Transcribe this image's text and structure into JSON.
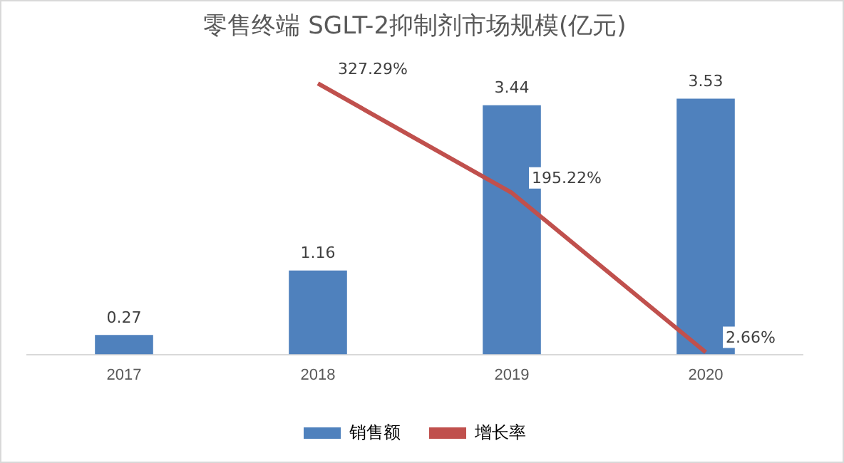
{
  "chart_data": {
    "type": "bar",
    "title": "零售终端 SGLT-2抑制剂市场规模(亿元)",
    "categories": [
      "2017",
      "2018",
      "2019",
      "2020"
    ],
    "series": [
      {
        "name": "销售额",
        "color": "#4f81bd",
        "values": [
          0.27,
          1.16,
          3.44,
          3.53
        ]
      },
      {
        "name": "增长率",
        "type": "line",
        "axis": "y2",
        "color": "#c0504d",
        "values": [
          null,
          327.29,
          195.22,
          2.66
        ],
        "value_labels": [
          null,
          "327.29%",
          "195.22%",
          "2.66%"
        ]
      }
    ],
    "data_labels": true,
    "legend": "bottom",
    "grid": false,
    "tick_labels": "x",
    "marker": "none",
    "line_style": "solid"
  }
}
